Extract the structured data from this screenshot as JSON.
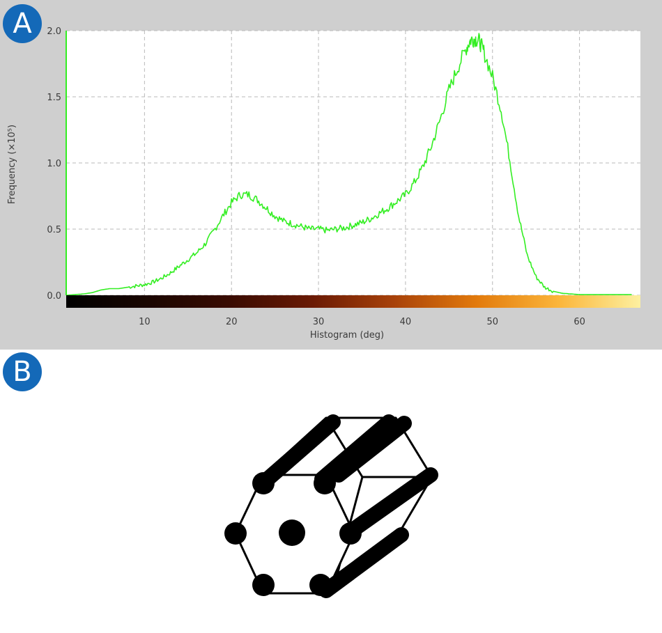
{
  "panels": {
    "a_label": "A",
    "b_label": "B"
  },
  "chart_data": {
    "type": "line",
    "ylabel": "Frequency (×10⁵)",
    "xlabel": "Histogram (deg)",
    "xlim": [
      1.0,
      67.0
    ],
    "ylim": [
      0.0,
      2.0
    ],
    "xticks": [
      10,
      20,
      30,
      40,
      50,
      60
    ],
    "yticks": [
      "0.0",
      "0.5",
      "1.0",
      "1.5",
      "2.0"
    ],
    "grid": true,
    "colorbar": {
      "colors": [
        "#000000",
        "#1a0600",
        "#3a0c02",
        "#6a1a04",
        "#a8420a",
        "#e27a0c",
        "#fbb53a",
        "#fdf0a0"
      ]
    },
    "series": [
      {
        "color": "#33ee22",
        "x": [
          1.0,
          2.0,
          3.0,
          4.0,
          5.0,
          6.0,
          7.0,
          8.0,
          9.0,
          10.0,
          11.0,
          12.0,
          13.0,
          14.0,
          15.0,
          16.0,
          17.0,
          18.0,
          19.0,
          20.0,
          21.0,
          22.0,
          23.0,
          24.0,
          25.0,
          26.0,
          27.0,
          28.0,
          29.0,
          30.0,
          31.0,
          32.0,
          33.0,
          34.0,
          35.0,
          36.0,
          37.0,
          38.0,
          39.0,
          40.0,
          41.0,
          42.0,
          43.0,
          44.0,
          45.0,
          46.0,
          47.0,
          47.5,
          48.0,
          48.5,
          49.0,
          50.0,
          51.0,
          52.0,
          53.0,
          54.0,
          55.0,
          56.0,
          57.0,
          58.0,
          59.0,
          60.0,
          62.0,
          64.0,
          66.0
        ],
        "y": [
          0.0,
          0.005,
          0.01,
          0.02,
          0.04,
          0.05,
          0.05,
          0.06,
          0.07,
          0.08,
          0.1,
          0.13,
          0.17,
          0.22,
          0.27,
          0.32,
          0.39,
          0.49,
          0.6,
          0.7,
          0.76,
          0.76,
          0.72,
          0.66,
          0.6,
          0.56,
          0.54,
          0.52,
          0.5,
          0.5,
          0.49,
          0.5,
          0.51,
          0.53,
          0.55,
          0.58,
          0.62,
          0.66,
          0.71,
          0.76,
          0.85,
          0.97,
          1.13,
          1.33,
          1.55,
          1.72,
          1.87,
          1.93,
          1.94,
          1.92,
          1.84,
          1.65,
          1.4,
          1.02,
          0.6,
          0.3,
          0.14,
          0.06,
          0.03,
          0.015,
          0.01,
          0.005,
          0.005,
          0.005,
          0.005
        ]
      }
    ]
  }
}
